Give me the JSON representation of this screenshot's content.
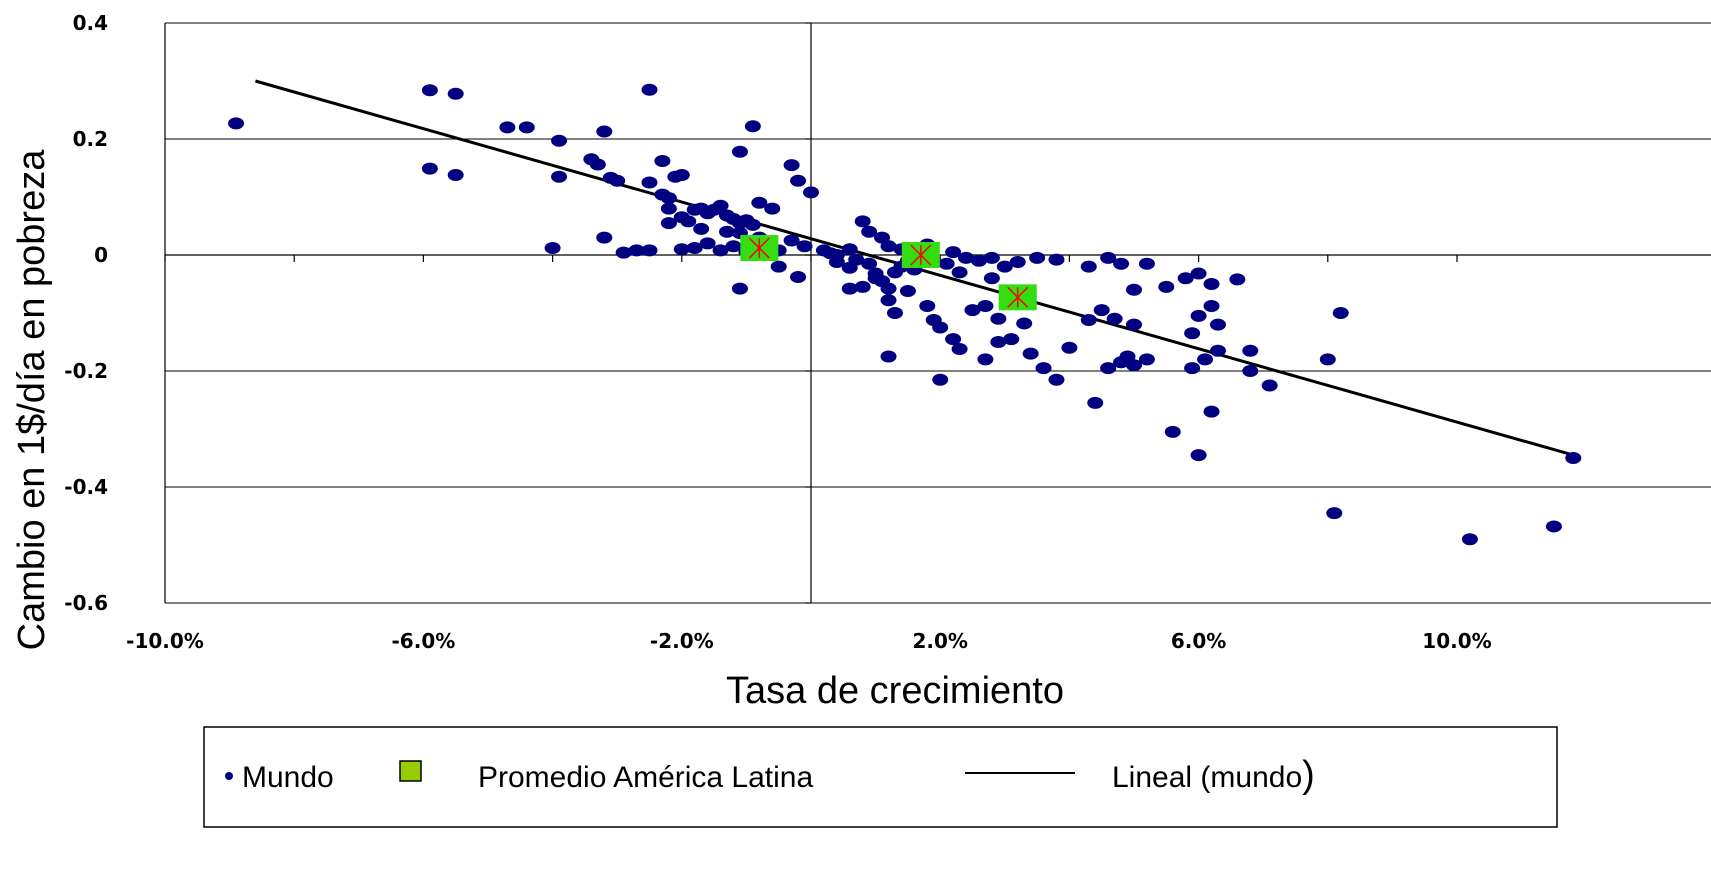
{
  "chart_data": {
    "type": "scatter",
    "title": "",
    "xlabel": "Tasa de crecimiento",
    "ylabel": "Cambio en 1$/día en pobreza",
    "xlim": [
      -10.0,
      11.8
    ],
    "ylim": [
      -0.6,
      0.4
    ],
    "x_ticks": [
      -10,
      -6,
      -2,
      2,
      6,
      10
    ],
    "x_tick_labels": [
      "-10.0%",
      "-6.0%",
      "-2.0%",
      "2.0%",
      "6.0%",
      "10.0%"
    ],
    "y_ticks": [
      0.4,
      0.2,
      0,
      -0.2,
      -0.4,
      -0.6
    ],
    "y_tick_labels": [
      "0.4",
      "0.2",
      "0",
      "-0.2",
      "-0.4",
      "-0.6"
    ],
    "grid": "horizontal",
    "legend_position": "bottom",
    "colors": {
      "mundo": "#000080",
      "latam_fill": "#33dd11",
      "latam_legend_fill": "#99cc00",
      "latam_marker": "#ff0000",
      "line": "#000000"
    },
    "legend": {
      "mundo": "Mundo",
      "latam": "Promedio América Latina",
      "lineal": "Lineal (mundo",
      "lineal_paren": ")"
    },
    "series": [
      {
        "name": "Mundo",
        "type": "scatter",
        "points": [
          [
            -8.9,
            0.227
          ],
          [
            -5.9,
            0.284
          ],
          [
            -5.5,
            0.278
          ],
          [
            -5.9,
            0.149
          ],
          [
            -5.5,
            0.138
          ],
          [
            -4.7,
            0.22
          ],
          [
            -4.4,
            0.22
          ],
          [
            -3.9,
            0.197
          ],
          [
            -3.9,
            0.135
          ],
          [
            -4.0,
            0.012
          ],
          [
            -3.2,
            0.213
          ],
          [
            -3.4,
            0.165
          ],
          [
            -3.3,
            0.156
          ],
          [
            -3.1,
            0.133
          ],
          [
            -3.0,
            0.128
          ],
          [
            -3.2,
            0.03
          ],
          [
            -2.9,
            0.004
          ],
          [
            -2.7,
            0.008
          ],
          [
            -2.5,
            0.285
          ],
          [
            -2.3,
            0.162
          ],
          [
            -2.5,
            0.125
          ],
          [
            -2.3,
            0.104
          ],
          [
            -2.2,
            0.098
          ],
          [
            -2.1,
            0.135
          ],
          [
            -2.0,
            0.138
          ],
          [
            -2.2,
            0.08
          ],
          [
            -2.0,
            0.065
          ],
          [
            -1.9,
            0.058
          ],
          [
            -1.8,
            0.078
          ],
          [
            -1.7,
            0.08
          ],
          [
            -1.6,
            0.072
          ],
          [
            -1.5,
            0.078
          ],
          [
            -1.4,
            0.085
          ],
          [
            -1.3,
            0.068
          ],
          [
            -1.2,
            0.062
          ],
          [
            -1.1,
            0.055
          ],
          [
            -1.0,
            0.06
          ],
          [
            -0.9,
            0.052
          ],
          [
            -0.8,
            0.09
          ],
          [
            -0.6,
            0.08
          ],
          [
            -0.9,
            0.222
          ],
          [
            -1.1,
            0.178
          ],
          [
            -0.3,
            0.155
          ],
          [
            -0.2,
            0.128
          ],
          [
            0.0,
            0.108
          ],
          [
            -2.5,
            0.008
          ],
          [
            -2.0,
            0.01
          ],
          [
            -1.8,
            0.012
          ],
          [
            -1.6,
            0.02
          ],
          [
            -1.4,
            0.008
          ],
          [
            -1.2,
            0.015
          ],
          [
            -1.0,
            0.005
          ],
          [
            -0.5,
            0.008
          ],
          [
            -0.3,
            0.025
          ],
          [
            -0.1,
            0.015
          ],
          [
            -2.2,
            0.055
          ],
          [
            -1.7,
            0.045
          ],
          [
            -1.3,
            0.04
          ],
          [
            -1.1,
            0.038
          ],
          [
            -0.8,
            0.03
          ],
          [
            -0.5,
            -0.02
          ],
          [
            -1.1,
            -0.058
          ],
          [
            -0.2,
            -0.038
          ],
          [
            0.2,
            0.008
          ],
          [
            0.3,
            0.003
          ],
          [
            0.4,
            -0.012
          ],
          [
            0.6,
            -0.022
          ],
          [
            0.7,
            -0.008
          ],
          [
            0.9,
            -0.015
          ],
          [
            1.0,
            -0.032
          ],
          [
            1.1,
            -0.045
          ],
          [
            1.2,
            -0.058
          ],
          [
            1.3,
            -0.03
          ],
          [
            1.4,
            -0.02
          ],
          [
            1.5,
            -0.01
          ],
          [
            0.8,
            0.058
          ],
          [
            0.9,
            0.04
          ],
          [
            1.1,
            0.03
          ],
          [
            1.2,
            0.015
          ],
          [
            1.4,
            0.01
          ],
          [
            1.6,
            0.005
          ],
          [
            1.8,
            0.018
          ],
          [
            2.2,
            0.005
          ],
          [
            2.4,
            -0.005
          ],
          [
            2.6,
            -0.01
          ],
          [
            2.8,
            -0.005
          ],
          [
            3.0,
            -0.02
          ],
          [
            3.2,
            -0.012
          ],
          [
            3.5,
            -0.005
          ],
          [
            3.8,
            -0.008
          ],
          [
            0.6,
            -0.058
          ],
          [
            0.8,
            -0.055
          ],
          [
            1.2,
            -0.078
          ],
          [
            1.3,
            -0.1
          ],
          [
            1.5,
            -0.062
          ],
          [
            1.8,
            -0.088
          ],
          [
            1.9,
            -0.112
          ],
          [
            2.0,
            -0.125
          ],
          [
            2.2,
            -0.145
          ],
          [
            2.3,
            -0.162
          ],
          [
            2.5,
            -0.095
          ],
          [
            2.7,
            -0.088
          ],
          [
            2.9,
            -0.11
          ],
          [
            3.1,
            -0.075
          ],
          [
            3.3,
            -0.118
          ],
          [
            1.2,
            -0.175
          ],
          [
            2.0,
            -0.215
          ],
          [
            2.7,
            -0.18
          ],
          [
            2.9,
            -0.15
          ],
          [
            3.1,
            -0.145
          ],
          [
            3.4,
            -0.17
          ],
          [
            3.6,
            -0.195
          ],
          [
            3.8,
            -0.215
          ],
          [
            4.0,
            -0.16
          ],
          [
            4.3,
            -0.112
          ],
          [
            4.5,
            -0.095
          ],
          [
            4.7,
            -0.11
          ],
          [
            5.0,
            -0.12
          ],
          [
            4.8,
            -0.185
          ],
          [
            4.9,
            -0.175
          ],
          [
            4.3,
            -0.02
          ],
          [
            4.6,
            -0.005
          ],
          [
            4.8,
            -0.015
          ],
          [
            5.0,
            -0.06
          ],
          [
            5.2,
            -0.015
          ],
          [
            5.5,
            -0.055
          ],
          [
            5.8,
            -0.04
          ],
          [
            6.0,
            -0.032
          ],
          [
            6.2,
            -0.05
          ],
          [
            6.6,
            -0.042
          ],
          [
            5.9,
            -0.135
          ],
          [
            6.0,
            -0.105
          ],
          [
            6.2,
            -0.088
          ],
          [
            6.3,
            -0.12
          ],
          [
            6.3,
            -0.165
          ],
          [
            6.1,
            -0.18
          ],
          [
            5.9,
            -0.195
          ],
          [
            6.2,
            -0.27
          ],
          [
            6.0,
            -0.345
          ],
          [
            5.6,
            -0.305
          ],
          [
            4.4,
            -0.255
          ],
          [
            4.6,
            -0.195
          ],
          [
            5.2,
            -0.18
          ],
          [
            5.0,
            -0.19
          ],
          [
            6.8,
            -0.165
          ],
          [
            6.8,
            -0.2
          ],
          [
            7.1,
            -0.225
          ],
          [
            8.2,
            -0.1
          ],
          [
            8.0,
            -0.18
          ],
          [
            8.1,
            -0.445
          ],
          [
            10.2,
            -0.49
          ],
          [
            11.5,
            -0.468
          ],
          [
            11.8,
            -0.35
          ],
          [
            0.4,
            0.0
          ],
          [
            0.6,
            0.01
          ],
          [
            1.0,
            -0.04
          ],
          [
            1.6,
            -0.025
          ],
          [
            2.1,
            -0.015
          ],
          [
            2.3,
            -0.03
          ],
          [
            2.8,
            -0.04
          ]
        ]
      },
      {
        "name": "Promedio América Latina",
        "type": "marker",
        "points": [
          [
            -0.8,
            0.012
          ],
          [
            1.7,
            0.0
          ],
          [
            3.2,
            -0.073
          ]
        ]
      },
      {
        "name": "Lineal (mundo)",
        "type": "line",
        "points": [
          [
            -8.6,
            0.3
          ],
          [
            11.8,
            -0.345
          ]
        ]
      }
    ]
  }
}
